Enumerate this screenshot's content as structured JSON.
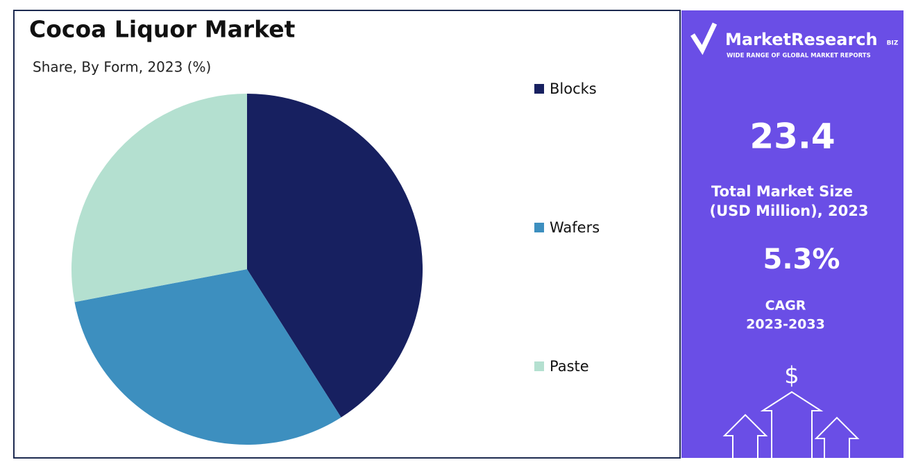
{
  "chart_data": {
    "type": "pie",
    "title": "Cocoa Liquor Market",
    "subtitle": "Share, By Form, 2023 (%)",
    "categories": [
      "Blocks",
      "Wafers",
      "Paste"
    ],
    "values": [
      41,
      31,
      28
    ],
    "colors": [
      "#172060",
      "#3d8fbf",
      "#b4e0d0"
    ]
  },
  "panel": {
    "brand": "MarketResearch",
    "brand_suffix": "BIZ",
    "tagline": "WIDE RANGE OF GLOBAL MARKET REPORTS",
    "market_size": "23.4",
    "market_size_label_1": "Total Market Size",
    "market_size_label_2": "(USD Million), 2023",
    "cagr": "5.3%",
    "cagr_label_1": "CAGR",
    "cagr_label_2": "2023-2033",
    "currency": "$"
  }
}
